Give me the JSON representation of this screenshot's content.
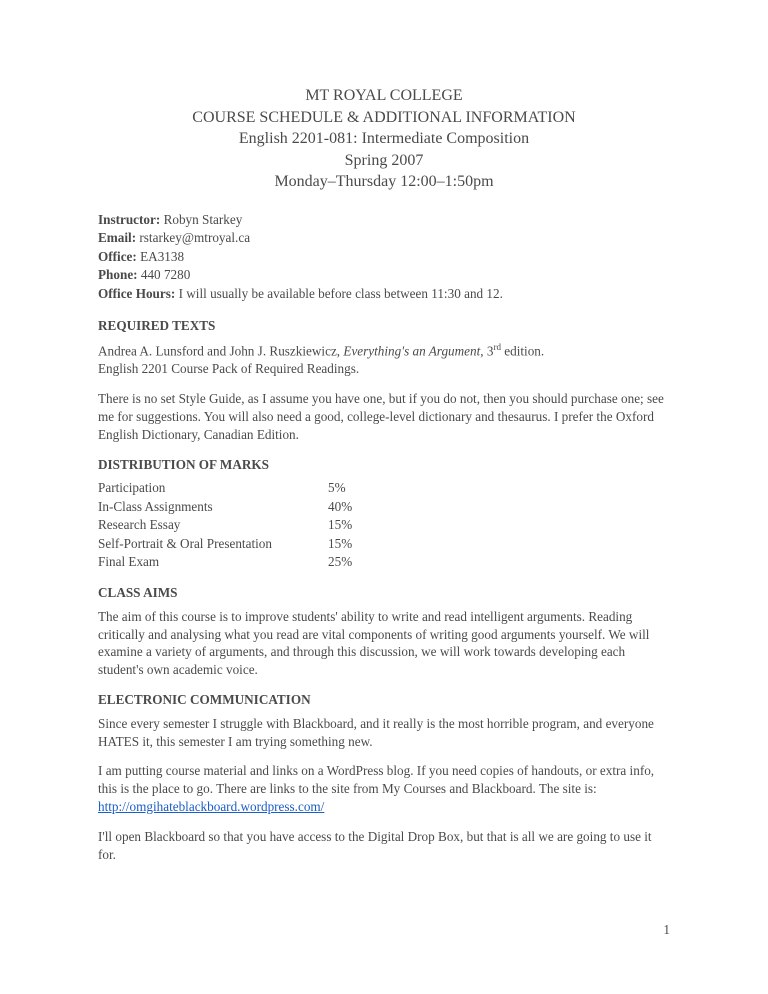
{
  "header": {
    "line1": "MT ROYAL COLLEGE",
    "line2": "COURSE SCHEDULE & ADDITIONAL INFORMATION",
    "line3": "English 2201-081: Intermediate Composition",
    "line4": "Spring 2007",
    "line5": "Monday–Thursday 12:00–1:50pm"
  },
  "info": {
    "instructor_label": "Instructor:",
    "instructor_value": " Robyn Starkey",
    "email_label": "Email:",
    "email_value": " rstarkey@mtroyal.ca",
    "office_label": "Office:",
    "office_value": " EA3138",
    "phone_label": "Phone:",
    "phone_value": " 440 7280",
    "hours_label": "Office Hours:",
    "hours_value": " I will usually be available before class between 11:30 and 12."
  },
  "required_texts": {
    "title": "REQUIRED TEXTS",
    "p1_a": "Andrea A. Lunsford and John J. Ruszkiewicz, ",
    "p1_b": "Everything's an Argument",
    "p1_c": ", 3",
    "p1_sup": "rd",
    "p1_d": " edition.",
    "p1_e": "English 2201 Course Pack of Required Readings.",
    "p2": "There is no set Style Guide, as I assume you have one, but if you do not, then you should purchase one; see me for suggestions. You will also need a good, college-level dictionary and thesaurus. I prefer the Oxford English Dictionary, Canadian Edition."
  },
  "marks": {
    "title": "DISTRIBUTION OF MARKS",
    "rows": [
      {
        "label": "Participation",
        "value": "5%"
      },
      {
        "label": "In-Class Assignments",
        "value": "40%"
      },
      {
        "label": "Research Essay",
        "value": "15%"
      },
      {
        "label": "Self-Portrait & Oral Presentation",
        "value": "15%"
      },
      {
        "label": "Final Exam",
        "value": "25%"
      }
    ]
  },
  "aims": {
    "title": "CLASS AIMS",
    "p1": "The aim of this course is to improve students' ability to write and read intelligent arguments. Reading critically and analysing what you read are vital components of writing good arguments yourself. We will examine a variety of arguments, and through this discussion, we will work towards developing each student's own academic voice."
  },
  "electronic": {
    "title": "ELECTRONIC COMMUNICATION",
    "p1": "Since every semester I struggle with Blackboard, and it really is the most horrible program, and everyone HATES it, this semester I am trying something new.",
    "p2_a": "I am putting course material and links on a WordPress blog. If you need copies of handouts, or extra info, this is the place to go. There are links to the site from My Courses and Blackboard. The site is: ",
    "p2_link": "http://omgihateblackboard.wordpress.com/",
    "p3": "I'll open Blackboard so that you have access to the Digital Drop Box, but that is all we are going to use it for."
  },
  "page_number": "1"
}
